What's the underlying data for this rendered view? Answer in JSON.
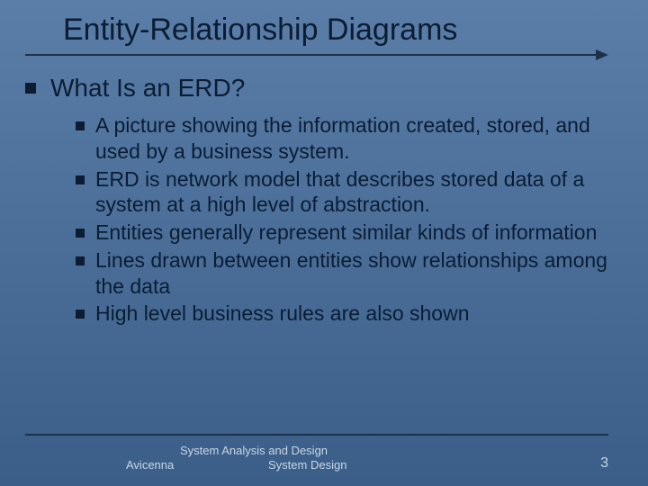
{
  "title": "Entity-Relationship Diagrams",
  "heading": "What Is an ERD?",
  "bullets": [
    "A picture showing the information created, stored, and used by a business system.",
    "ERD is network model that describes stored data of a system at a high level of abstraction.",
    "Entities generally represent similar kinds of information",
    "Lines drawn between entities show relationships among the data",
    "High level business rules are also shown"
  ],
  "footer": {
    "author": "Avicenna",
    "line1": "System Analysis and Design",
    "line2": "System Design",
    "page": "3"
  },
  "colors": {
    "bg_top": "#5a7ea8",
    "bg_bottom": "#3a5e88",
    "text_dark": "#0b1c33",
    "text_light": "#c9d6e6",
    "line": "#1e2f4a"
  }
}
